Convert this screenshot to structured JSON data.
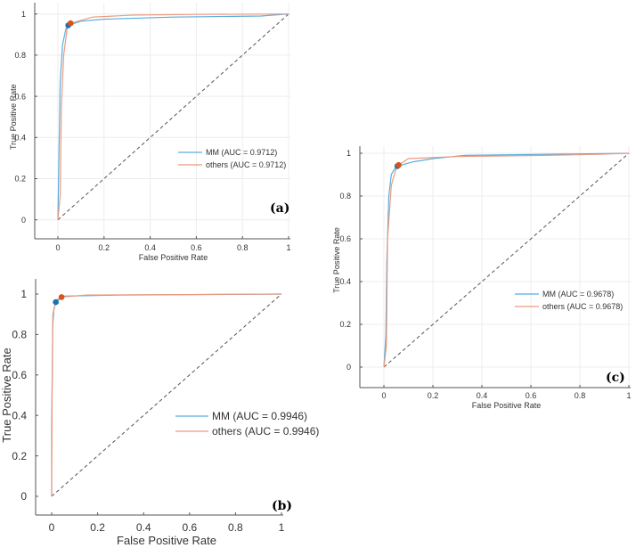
{
  "chart_data": [
    {
      "type": "line",
      "panel_label": "(a)",
      "xlabel": "False Positive Rate",
      "ylabel": "True Positive Rate",
      "xlim": [
        -0.1,
        1
      ],
      "ylim": [
        -0.1,
        1.05
      ],
      "xticks": [
        "0",
        "0.2",
        "0.4",
        "0.6",
        "0.8",
        "1"
      ],
      "yticks": [
        "0",
        "0.2",
        "0.4",
        "0.6",
        "0.8",
        "1"
      ],
      "grid": true,
      "legend_position": "center-right",
      "series": [
        {
          "name": "MM (AUC = 0.9712)",
          "color": "#5aaede",
          "marker_color": "#1f6fb4",
          "operating_point": [
            0.045,
            0.945
          ],
          "points": [
            [
              0,
              0
            ],
            [
              0.005,
              0.35
            ],
            [
              0.01,
              0.67
            ],
            [
              0.02,
              0.85
            ],
            [
              0.035,
              0.93
            ],
            [
              0.045,
              0.945
            ],
            [
              0.1,
              0.965
            ],
            [
              0.2,
              0.975
            ],
            [
              0.5,
              0.985
            ],
            [
              0.88,
              0.99
            ],
            [
              1,
              1
            ]
          ]
        },
        {
          "name": "others (AUC = 0.9712)",
          "color": "#eb9a80",
          "marker_color": "#d95319",
          "operating_point": [
            0.055,
            0.955
          ],
          "points": [
            [
              0,
              0
            ],
            [
              0.01,
              0.12
            ],
            [
              0.015,
              0.55
            ],
            [
              0.025,
              0.8
            ],
            [
              0.04,
              0.93
            ],
            [
              0.055,
              0.955
            ],
            [
              0.15,
              0.985
            ],
            [
              0.33,
              0.995
            ],
            [
              0.6,
              0.998
            ],
            [
              1,
              1
            ]
          ]
        }
      ]
    },
    {
      "type": "line",
      "panel_label": "(b)",
      "xlabel": "False Positive Rate",
      "ylabel": "True Positive Rate",
      "xlim": [
        -0.07,
        1
      ],
      "ylim": [
        -0.1,
        1.07
      ],
      "xticks": [
        "0",
        "0.2",
        "0.4",
        "0.6",
        "0.8",
        "1"
      ],
      "yticks": [
        "0",
        "0.2",
        "0.4",
        "0.6",
        "0.8",
        "1"
      ],
      "grid": false,
      "legend_position": "center-right",
      "series": [
        {
          "name": "MM (AUC = 0.9946)",
          "color": "#5aaede",
          "marker_color": "#1f6fb4",
          "operating_point": [
            0.018,
            0.96
          ],
          "points": [
            [
              0,
              0
            ],
            [
              0,
              0.35
            ],
            [
              0.005,
              0.85
            ],
            [
              0.01,
              0.93
            ],
            [
              0.02,
              0.96
            ],
            [
              0.05,
              0.99
            ],
            [
              0.3,
              0.995
            ],
            [
              1,
              1
            ]
          ]
        },
        {
          "name": "others (AUC = 0.9946)",
          "color": "#eb9a80",
          "marker_color": "#d95319",
          "operating_point": [
            0.043,
            0.985
          ],
          "points": [
            [
              0,
              0
            ],
            [
              0.002,
              0.5
            ],
            [
              0.005,
              0.9
            ],
            [
              0.02,
              0.97
            ],
            [
              0.043,
              0.985
            ],
            [
              0.15,
              0.995
            ],
            [
              1,
              1
            ]
          ]
        }
      ]
    },
    {
      "type": "line",
      "panel_label": "(c)",
      "xlabel": "False Positive Rate",
      "ylabel": "True Positive Rate",
      "xlim": [
        -0.1,
        1
      ],
      "ylim": [
        -0.1,
        1.03
      ],
      "xticks": [
        "0",
        "0.2",
        "0.4",
        "0.6",
        "0.8",
        "1"
      ],
      "yticks": [
        "0",
        "0.2",
        "0.4",
        "0.6",
        "0.8",
        "1"
      ],
      "grid": true,
      "legend_position": "center-right",
      "series": [
        {
          "name": "MM (AUC = 0.9678)",
          "color": "#5aaede",
          "marker_color": "#1f6fb4",
          "operating_point": [
            0.055,
            0.94
          ],
          "points": [
            [
              0,
              0
            ],
            [
              0.008,
              0.15
            ],
            [
              0.012,
              0.5
            ],
            [
              0.02,
              0.8
            ],
            [
              0.03,
              0.9
            ],
            [
              0.04,
              0.92
            ],
            [
              0.055,
              0.94
            ],
            [
              0.12,
              0.96
            ],
            [
              0.2,
              0.975
            ],
            [
              0.33,
              0.99
            ],
            [
              1,
              1
            ]
          ]
        },
        {
          "name": "others (AUC = 0.9678)",
          "color": "#eb9a80",
          "marker_color": "#d95319",
          "operating_point": [
            0.06,
            0.945
          ],
          "points": [
            [
              0,
              0
            ],
            [
              0.01,
              0.1
            ],
            [
              0.015,
              0.6
            ],
            [
              0.03,
              0.85
            ],
            [
              0.05,
              0.93
            ],
            [
              0.06,
              0.945
            ],
            [
              0.1,
              0.975
            ],
            [
              0.3,
              0.985
            ],
            [
              0.65,
              0.99
            ],
            [
              0.88,
              0.995
            ],
            [
              1,
              1
            ]
          ]
        }
      ]
    }
  ]
}
